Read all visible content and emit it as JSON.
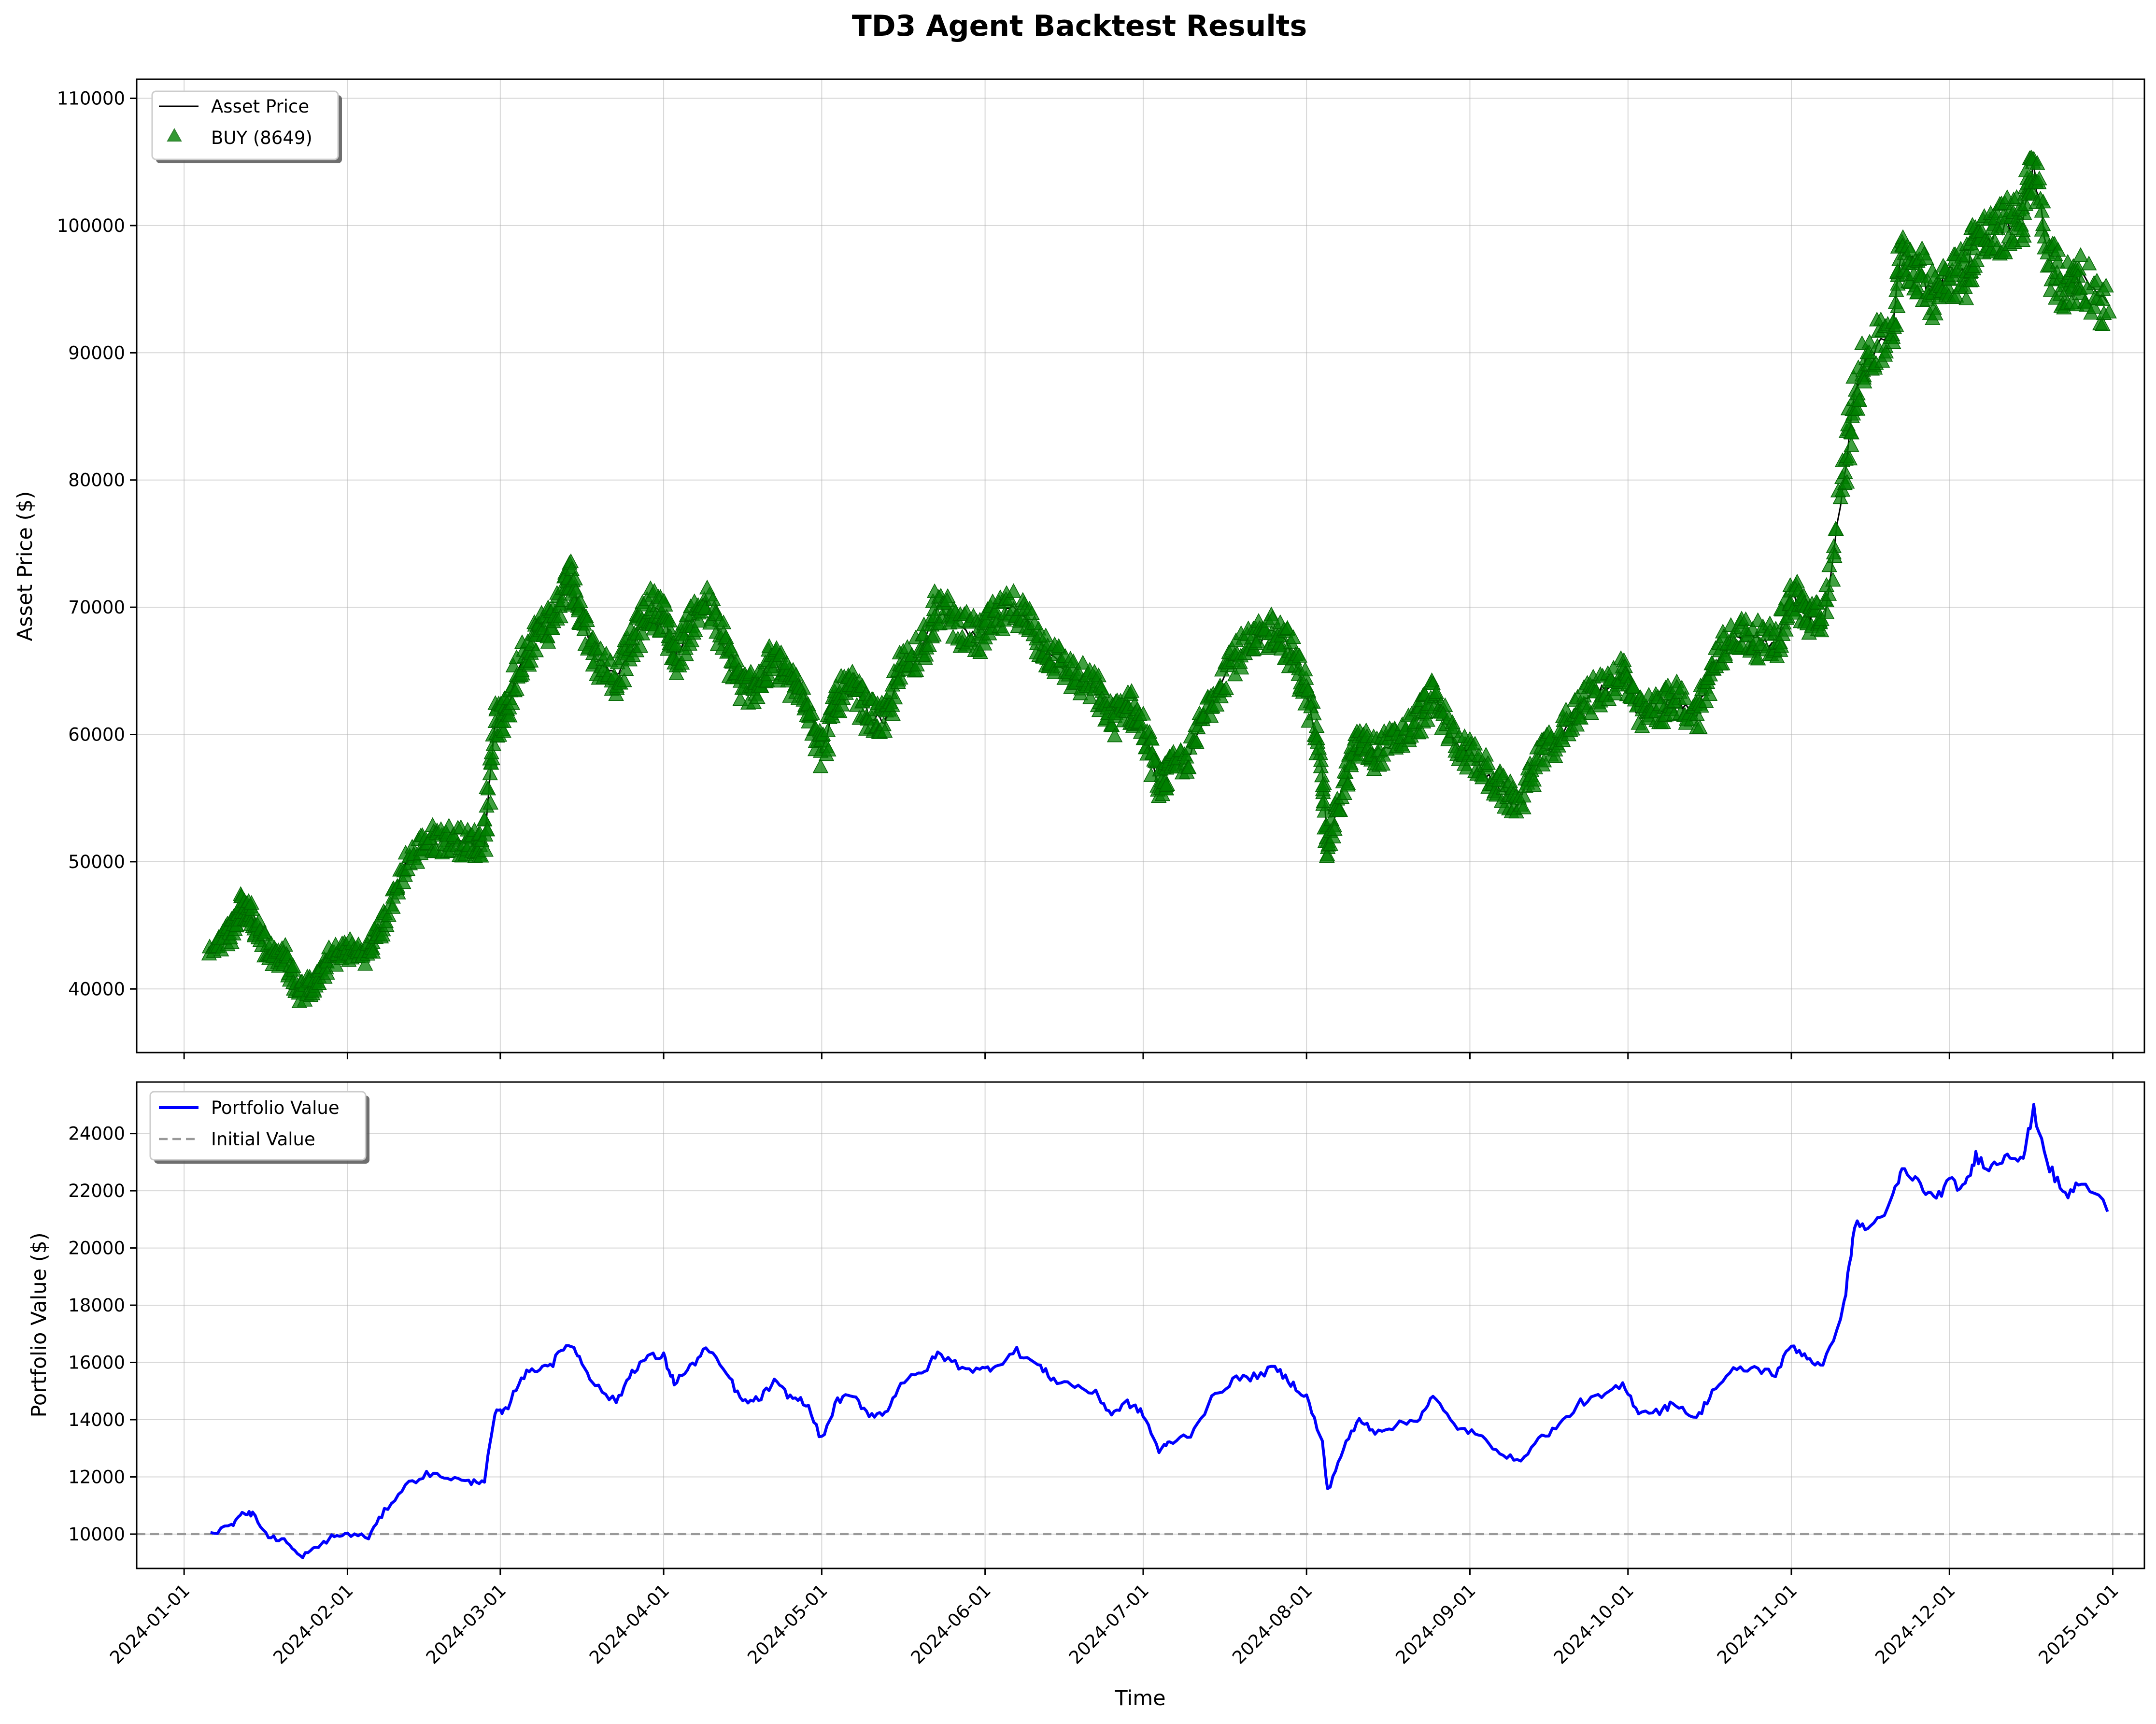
{
  "figure": {
    "title": "TD3 Agent Backtest Results",
    "xlabel": "Time"
  },
  "chart_data": [
    {
      "type": "line",
      "ylabel": "Asset Price ($)",
      "xlim": [
        "2023-12-23",
        "2025-01-07"
      ],
      "ylim": [
        35000,
        111500
      ],
      "grid": true,
      "legend_placement": "top-left",
      "x_ticks": [
        "2024-01-01",
        "2024-02-01",
        "2024-03-01",
        "2024-04-01",
        "2024-05-01",
        "2024-06-01",
        "2024-07-01",
        "2024-08-01",
        "2024-09-01",
        "2024-10-01",
        "2024-11-01",
        "2024-12-01",
        "2025-01-01"
      ],
      "y_ticks": [
        40000,
        50000,
        60000,
        70000,
        80000,
        90000,
        100000,
        110000
      ],
      "series": [
        {
          "name": "Asset Price",
          "color": "#000000",
          "style": "line"
        },
        {
          "name": "BUY (8649)",
          "color": "#008000",
          "style": "triangle-markers"
        }
      ],
      "x": [
        "2024-01-06",
        "2024-01-10",
        "2024-01-12",
        "2024-01-14",
        "2024-01-17",
        "2024-01-20",
        "2024-01-23",
        "2024-01-26",
        "2024-01-29",
        "2024-02-01",
        "2024-02-05",
        "2024-02-08",
        "2024-02-12",
        "2024-02-16",
        "2024-02-20",
        "2024-02-24",
        "2024-02-27",
        "2024-02-29",
        "2024-03-02",
        "2024-03-05",
        "2024-03-08",
        "2024-03-11",
        "2024-03-14",
        "2024-03-16",
        "2024-03-19",
        "2024-03-23",
        "2024-03-26",
        "2024-03-29",
        "2024-04-01",
        "2024-04-03",
        "2024-04-06",
        "2024-04-09",
        "2024-04-13",
        "2024-04-16",
        "2024-04-19",
        "2024-04-22",
        "2024-04-25",
        "2024-04-28",
        "2024-05-01",
        "2024-05-04",
        "2024-05-07",
        "2024-05-10",
        "2024-05-13",
        "2024-05-16",
        "2024-05-20",
        "2024-05-23",
        "2024-05-27",
        "2024-05-31",
        "2024-06-03",
        "2024-06-07",
        "2024-06-11",
        "2024-06-14",
        "2024-06-18",
        "2024-06-22",
        "2024-06-25",
        "2024-06-28",
        "2024-07-01",
        "2024-07-04",
        "2024-07-06",
        "2024-07-10",
        "2024-07-14",
        "2024-07-18",
        "2024-07-22",
        "2024-07-26",
        "2024-07-29",
        "2024-08-01",
        "2024-08-04",
        "2024-08-05",
        "2024-08-08",
        "2024-08-11",
        "2024-08-14",
        "2024-08-18",
        "2024-08-22",
        "2024-08-25",
        "2024-08-29",
        "2024-09-02",
        "2024-09-06",
        "2024-09-10",
        "2024-09-14",
        "2024-09-18",
        "2024-09-22",
        "2024-09-26",
        "2024-09-30",
        "2024-10-03",
        "2024-10-07",
        "2024-10-10",
        "2024-10-14",
        "2024-10-17",
        "2024-10-21",
        "2024-10-25",
        "2024-10-29",
        "2024-11-01",
        "2024-11-04",
        "2024-11-07",
        "2024-11-11",
        "2024-11-13",
        "2024-11-16",
        "2024-11-20",
        "2024-11-22",
        "2024-11-25",
        "2024-11-28",
        "2024-12-01",
        "2024-12-04",
        "2024-12-06",
        "2024-12-09",
        "2024-12-12",
        "2024-12-15",
        "2024-12-17",
        "2024-12-20",
        "2024-12-23",
        "2024-12-26",
        "2024-12-31"
      ],
      "price": [
        43500,
        44500,
        46500,
        45800,
        42800,
        42500,
        39700,
        40500,
        42500,
        43000,
        42800,
        45300,
        49800,
        51700,
        51800,
        51400,
        51500,
        61000,
        61500,
        66000,
        68000,
        69000,
        72500,
        70000,
        66000,
        64500,
        67000,
        70000,
        69500,
        65800,
        68500,
        70500,
        66500,
        63500,
        64000,
        66000,
        64000,
        63000,
        58500,
        63000,
        63500,
        61500,
        61000,
        65000,
        67000,
        70000,
        68500,
        67500,
        69000,
        70000,
        67500,
        66000,
        64500,
        63500,
        61000,
        62500,
        60500,
        56000,
        57000,
        58500,
        63000,
        66000,
        67000,
        68500,
        66500,
        63500,
        57000,
        51000,
        56000,
        59500,
        58500,
        59500,
        61000,
        63000,
        59500,
        58000,
        56000,
        54500,
        58000,
        59800,
        62500,
        63500,
        65000,
        61500,
        62000,
        62800,
        61500,
        65000,
        68000,
        67500,
        67000,
        71000,
        69500,
        68500,
        80000,
        87000,
        90000,
        91500,
        98000,
        96500,
        94500,
        96500,
        96000,
        99000,
        99000,
        100000,
        101000,
        104500,
        97000,
        95000,
        96000,
        93500
      ]
    },
    {
      "type": "line",
      "ylabel": "Portfolio Value ($)",
      "xlim": [
        "2023-12-23",
        "2025-01-07"
      ],
      "ylim": [
        8800,
        25800
      ],
      "grid": true,
      "legend_placement": "top-left",
      "x_ticks": [
        "2024-01-01",
        "2024-02-01",
        "2024-03-01",
        "2024-04-01",
        "2024-05-01",
        "2024-06-01",
        "2024-07-01",
        "2024-08-01",
        "2024-09-01",
        "2024-10-01",
        "2024-11-01",
        "2024-12-01",
        "2025-01-01"
      ],
      "y_ticks": [
        10000,
        12000,
        14000,
        16000,
        18000,
        20000,
        22000,
        24000
      ],
      "series": [
        {
          "name": "Portfolio Value",
          "color": "#0000ff",
          "style": "line"
        },
        {
          "name": "Initial Value",
          "color": "#999999",
          "style": "dashed",
          "value": 10000
        }
      ],
      "x": [
        "2024-01-06",
        "2024-01-10",
        "2024-01-12",
        "2024-01-14",
        "2024-01-17",
        "2024-01-20",
        "2024-01-23",
        "2024-01-26",
        "2024-01-29",
        "2024-02-01",
        "2024-02-05",
        "2024-02-08",
        "2024-02-12",
        "2024-02-16",
        "2024-02-20",
        "2024-02-24",
        "2024-02-27",
        "2024-02-29",
        "2024-03-02",
        "2024-03-05",
        "2024-03-08",
        "2024-03-11",
        "2024-03-14",
        "2024-03-16",
        "2024-03-19",
        "2024-03-23",
        "2024-03-26",
        "2024-03-29",
        "2024-04-01",
        "2024-04-03",
        "2024-04-06",
        "2024-04-09",
        "2024-04-13",
        "2024-04-16",
        "2024-04-19",
        "2024-04-22",
        "2024-04-25",
        "2024-04-28",
        "2024-05-01",
        "2024-05-04",
        "2024-05-07",
        "2024-05-10",
        "2024-05-13",
        "2024-05-16",
        "2024-05-20",
        "2024-05-23",
        "2024-05-27",
        "2024-05-31",
        "2024-06-03",
        "2024-06-07",
        "2024-06-11",
        "2024-06-14",
        "2024-06-18",
        "2024-06-22",
        "2024-06-25",
        "2024-06-28",
        "2024-07-01",
        "2024-07-04",
        "2024-07-06",
        "2024-07-10",
        "2024-07-14",
        "2024-07-18",
        "2024-07-22",
        "2024-07-26",
        "2024-07-29",
        "2024-08-01",
        "2024-08-04",
        "2024-08-05",
        "2024-08-08",
        "2024-08-11",
        "2024-08-14",
        "2024-08-18",
        "2024-08-22",
        "2024-08-25",
        "2024-08-29",
        "2024-09-02",
        "2024-09-06",
        "2024-09-10",
        "2024-09-14",
        "2024-09-18",
        "2024-09-22",
        "2024-09-26",
        "2024-09-30",
        "2024-10-03",
        "2024-10-07",
        "2024-10-10",
        "2024-10-14",
        "2024-10-17",
        "2024-10-21",
        "2024-10-25",
        "2024-10-29",
        "2024-11-01",
        "2024-11-04",
        "2024-11-07",
        "2024-11-11",
        "2024-11-13",
        "2024-11-16",
        "2024-11-20",
        "2024-11-22",
        "2024-11-25",
        "2024-11-28",
        "2024-12-01",
        "2024-12-04",
        "2024-12-06",
        "2024-12-09",
        "2024-12-12",
        "2024-12-15",
        "2024-12-17",
        "2024-12-20",
        "2024-12-23",
        "2024-12-26",
        "2024-12-31"
      ],
      "values": [
        10000,
        10300,
        10800,
        10700,
        9900,
        9800,
        9200,
        9500,
        9900,
        10000,
        9900,
        10800,
        11700,
        12100,
        12000,
        11800,
        11900,
        14200,
        14300,
        15500,
        15800,
        16000,
        16700,
        16200,
        15200,
        14600,
        15700,
        16200,
        16200,
        15300,
        15800,
        16500,
        15600,
        14600,
        14700,
        15300,
        14800,
        14600,
        13300,
        14700,
        14800,
        14200,
        14200,
        15300,
        15600,
        16300,
        15900,
        15700,
        15900,
        16400,
        15900,
        15400,
        15200,
        14900,
        14200,
        14600,
        14200,
        12900,
        13200,
        13500,
        14700,
        15400,
        15500,
        15800,
        15300,
        14800,
        13200,
        11500,
        13000,
        14000,
        13600,
        13800,
        14000,
        14800,
        13800,
        13500,
        13000,
        12500,
        13300,
        13800,
        14600,
        14800,
        15200,
        14300,
        14300,
        14600,
        14000,
        15000,
        15700,
        15800,
        15600,
        16600,
        16200,
        15800,
        18000,
        20800,
        20700,
        21600,
        22700,
        22300,
        21700,
        22300,
        22100,
        23200,
        22800,
        23300,
        23200,
        24800,
        22800,
        21800,
        22300,
        21400
      ]
    }
  ]
}
